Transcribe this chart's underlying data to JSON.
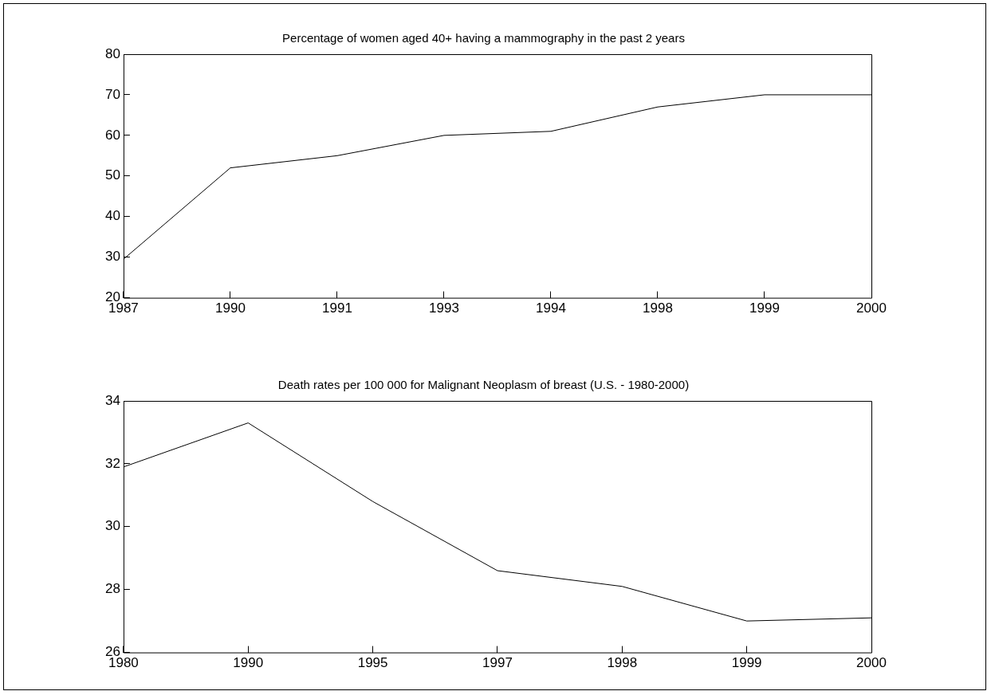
{
  "chart_data": [
    {
      "type": "line",
      "title": "Percentage of women aged 40+ having a mammography in the past 2 years",
      "categories": [
        "1987",
        "1990",
        "1991",
        "1993",
        "1994",
        "1998",
        "1999",
        "2000"
      ],
      "series": [
        {
          "color": "#000000",
          "values": [
            29.5,
            52,
            55,
            60,
            61,
            67,
            70,
            70
          ]
        }
      ],
      "ylim": [
        20,
        80
      ],
      "yticks": [
        20,
        30,
        40,
        50,
        60,
        70,
        80
      ],
      "grid": false,
      "legend": false,
      "marker": "none",
      "line_style": "solid"
    },
    {
      "type": "line",
      "title": "Death rates per 100 000 for Malignant Neoplasm of breast (U.S. - 1980-2000)",
      "categories": [
        "1980",
        "1990",
        "1995",
        "1997",
        "1998",
        "1999",
        "2000"
      ],
      "series": [
        {
          "color": "#000000",
          "values": [
            31.9,
            33.3,
            30.8,
            28.6,
            28.1,
            27.0,
            27.1
          ]
        }
      ],
      "ylim": [
        26,
        34
      ],
      "yticks": [
        26,
        28,
        30,
        32,
        34
      ],
      "grid": false,
      "legend": false,
      "marker": "none",
      "line_style": "solid"
    }
  ]
}
